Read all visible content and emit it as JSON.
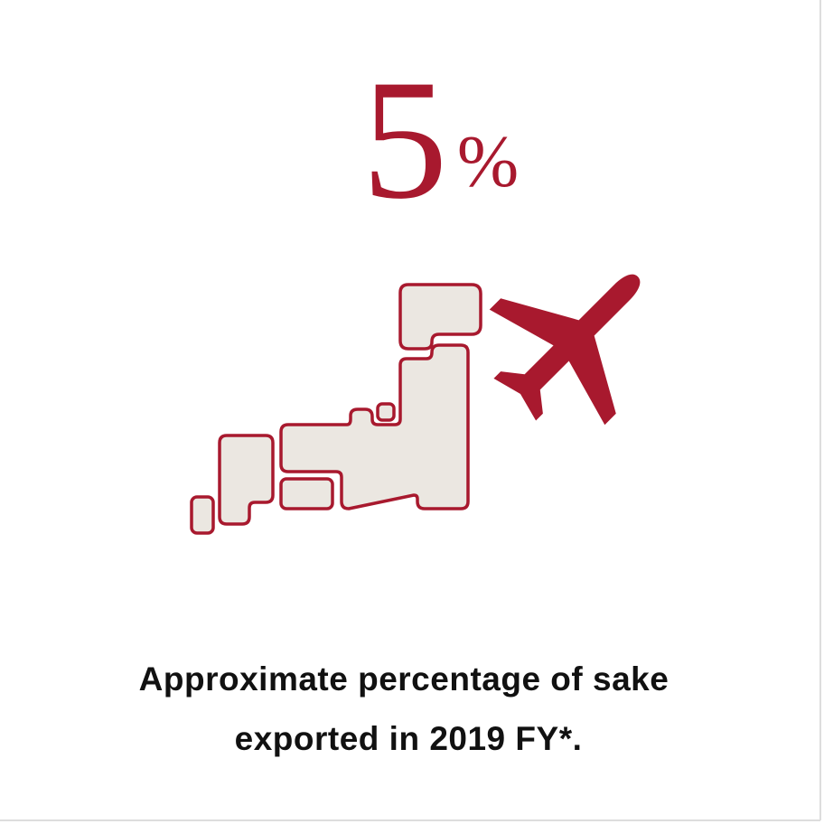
{
  "stat": {
    "value": "5",
    "unit": "%"
  },
  "caption": {
    "lines": [
      "Approximate percentage of sake",
      "exported in 2019 FY*."
    ]
  }
}
